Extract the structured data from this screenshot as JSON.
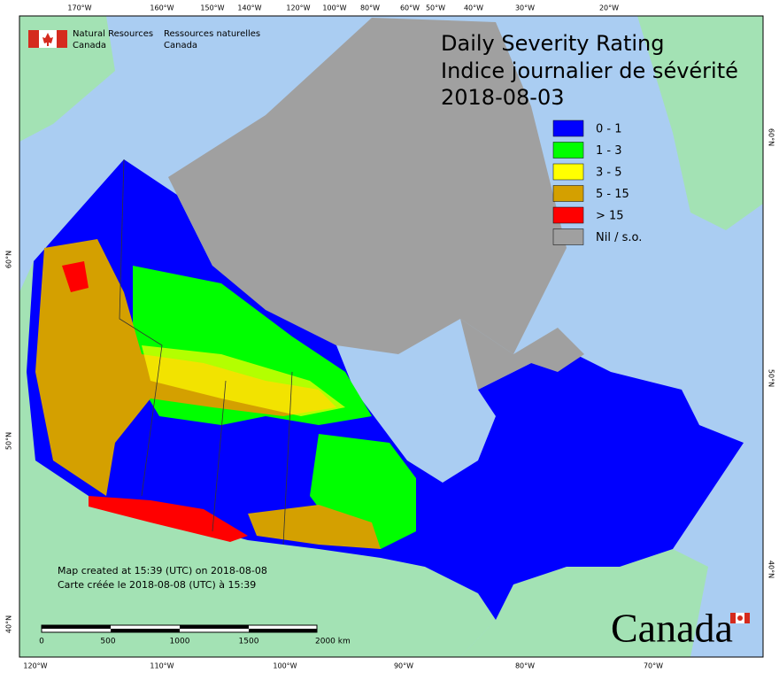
{
  "header": {
    "agency_en": [
      "Natural Resources",
      "Canada"
    ],
    "agency_fr": [
      "Ressources naturelles",
      "Canada"
    ]
  },
  "title": [
    "Daily Severity Rating",
    "Indice journalier de sévérité",
    "2018-08-03"
  ],
  "legend": [
    {
      "label": "0 - 1",
      "color": "#0000ff"
    },
    {
      "label": "1 - 3",
      "color": "#00ff00"
    },
    {
      "label": "3 - 5",
      "color": "#ffff00"
    },
    {
      "label": "5 - 15",
      "color": "#d4a000"
    },
    {
      "label": "> 15",
      "color": "#ff0000"
    },
    {
      "label": "Nil / s.o.",
      "color": "#a0a0a0"
    }
  ],
  "graticule": {
    "top": [
      "170°W",
      "160°W",
      "150°W",
      "140°W",
      "120°W",
      "100°W",
      "80°W",
      "60°W",
      "50°W",
      "40°W",
      "30°W",
      "20°W"
    ],
    "bottom": [
      "120°W",
      "110°W",
      "100°W",
      "90°W",
      "80°W",
      "70°W"
    ],
    "left": [
      "60°N",
      "50°N",
      "40°N"
    ],
    "right": [
      "60°N",
      "50°N",
      "40°N"
    ]
  },
  "credits": [
    "Map created at 15:39 (UTC) on 2018-08-08",
    "Carte créée le 2018-08-08 (UTC) à 15:39"
  ],
  "scale_bar": [
    "0",
    "500",
    "1000",
    "1500",
    "2000 km"
  ],
  "wordmark": "Canada"
}
